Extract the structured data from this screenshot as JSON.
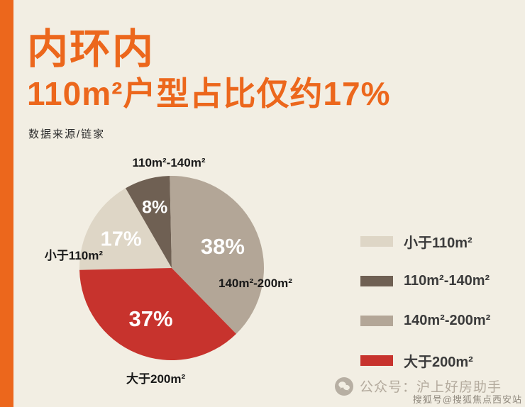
{
  "header": {
    "title": "内环内",
    "subtitle": "110m²户型占比仅约17%",
    "source": "数据来源/链家"
  },
  "accent_color": "#ec671c",
  "chart_data": {
    "type": "pie",
    "title": "内环内110m²户型占比仅约17%",
    "source": "数据来源/链家",
    "start_angle_deg": 268.8,
    "direction": "clockwise",
    "legend_position": "right",
    "percent_label_color": "#ffffff",
    "slices": [
      {
        "name": "小于110m²",
        "value": 17,
        "label": "17%",
        "color": "#ded6c6"
      },
      {
        "name": "110m²-140m²",
        "value": 8,
        "label": "8%",
        "color": "#6f6053"
      },
      {
        "name": "140m²-200m²",
        "value": 38,
        "label": "38%",
        "color": "#b3a697"
      },
      {
        "name": "大于200m²",
        "value": 37,
        "label": "37%",
        "color": "#c7332d"
      }
    ]
  },
  "watermark": {
    "wechat_label": "公众号：沪上好房助手",
    "sohu_label": "搜狐号@搜狐焦点西安站"
  }
}
